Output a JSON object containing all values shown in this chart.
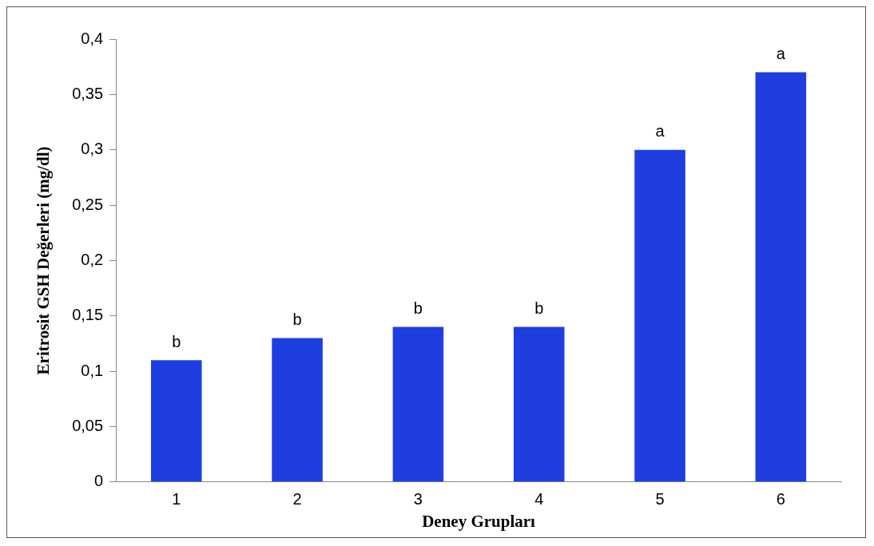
{
  "chart_data": {
    "type": "bar",
    "xlabel": "Deney Grupları",
    "ylabel": "Eritrosit GSH Değerleri (mg/dl)",
    "categories": [
      "1",
      "2",
      "3",
      "4",
      "5",
      "6"
    ],
    "values": [
      0.11,
      0.13,
      0.14,
      0.14,
      0.3,
      0.37
    ],
    "color": "#1e3ee0",
    "ylim": [
      0,
      0.4
    ],
    "yticks": [
      0,
      {
        "value": 0.05,
        "label": "0,05"
      },
      {
        "value": 0.1,
        "label": "0,1"
      },
      {
        "value": 0.15,
        "label": "0,15"
      },
      {
        "value": 0.2,
        "label": "0,2"
      },
      {
        "value": 0.25,
        "label": "0,25"
      },
      {
        "value": 0.3,
        "label": "0,3"
      },
      {
        "value": 0.35,
        "label": "0,35"
      },
      {
        "value": 0.4,
        "label": "0,4"
      }
    ],
    "grid": false,
    "legend": false,
    "annotations": [
      {
        "text": "b",
        "x": "1",
        "y": 0.11
      },
      {
        "text": "b",
        "x": "2",
        "y": 0.13
      },
      {
        "text": "b",
        "x": "3",
        "y": 0.14
      },
      {
        "text": "b",
        "x": "4",
        "y": 0.14
      },
      {
        "text": "a",
        "x": "5",
        "y": 0.3
      },
      {
        "text": "a",
        "x": "6",
        "y": 0.37
      }
    ]
  }
}
